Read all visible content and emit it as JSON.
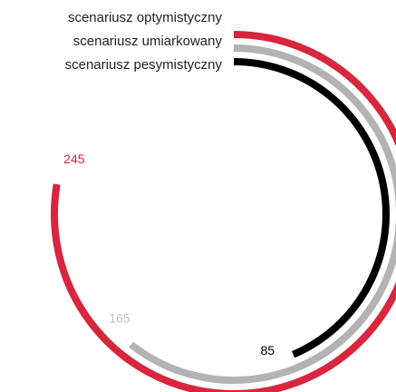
{
  "chart_data": {
    "type": "radial-bar",
    "series": [
      {
        "name": "scenariusz optymistyczny",
        "color": "#d7263d",
        "values": [
          245
        ]
      },
      {
        "name": "scenariusz umiarkowany",
        "color": "#b3b3b3",
        "values": [
          165
        ]
      },
      {
        "name": "scenariusz pesymistyczny",
        "color": "#000000",
        "values": [
          85
        ]
      }
    ],
    "ylim": [
      -120,
      350
    ]
  }
}
